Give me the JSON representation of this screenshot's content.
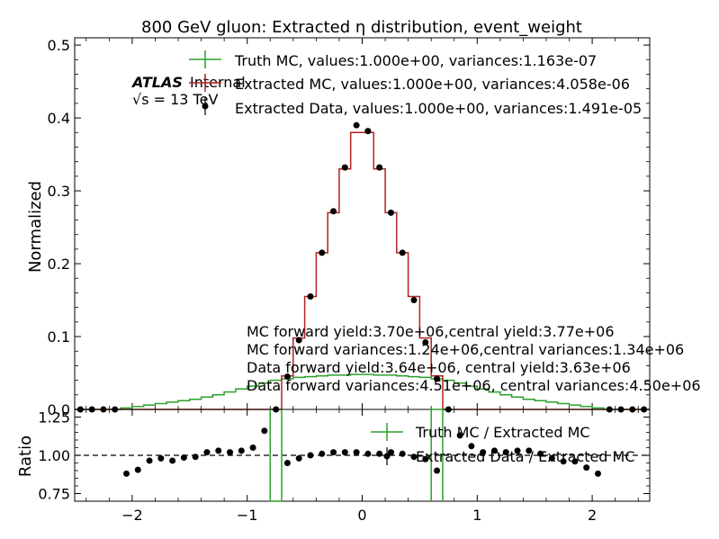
{
  "chart_data": [
    {
      "type": "step",
      "title": "800 GeV gluon: Extracted η distribution, event_weight",
      "xlabel": "",
      "ylabel": "Normalized",
      "xlim": [
        -2.5,
        2.5
      ],
      "ylim": [
        0,
        0.51
      ],
      "yticks": [
        "0.0",
        "0.1",
        "0.2",
        "0.3",
        "0.4",
        "0.5"
      ],
      "atlas_label": "ATLAS",
      "atlas_sub": "Internal",
      "energy_label": "√s = 13 TeV",
      "legend": [
        {
          "name": "Truth MC, values:1.000e+00, variances:1.163e-07",
          "color": "#2ca02c",
          "marker": "errorbar-line"
        },
        {
          "name": "Extracted MC, values:1.000e+00, variances:4.058e-06",
          "color": "#b22222",
          "marker": "errorbar-line"
        },
        {
          "name": "Extracted Data, values:1.000e+00, variances:1.491e-05",
          "color": "#000000",
          "marker": "dot"
        }
      ],
      "annotations": [
        "MC forward yield:3.70e+06,central yield:3.77e+06",
        "MC forward variances:1.24e+06,central variances:1.34e+06",
        "Data forward yield:3.64e+06, central yield:3.63e+06",
        "Data forward variances:4.51e+06, central variances:4.50e+06"
      ],
      "bin_edges": [
        -2.5,
        -2.4,
        -2.3,
        -2.2,
        -2.1,
        -2.0,
        -1.9,
        -1.8,
        -1.7,
        -1.6,
        -1.5,
        -1.4,
        -1.3,
        -1.2,
        -1.1,
        -1.0,
        -0.9,
        -0.8,
        -0.7,
        -0.6,
        -0.5,
        -0.4,
        -0.3,
        -0.2,
        -0.1,
        0.0,
        0.1,
        0.2,
        0.3,
        0.4,
        0.5,
        0.6,
        0.7,
        0.8,
        0.9,
        1.0,
        1.1,
        1.2,
        1.3,
        1.4,
        1.5,
        1.6,
        1.7,
        1.8,
        1.9,
        2.0,
        2.1,
        2.2,
        2.3,
        2.4,
        2.5
      ],
      "series": [
        {
          "name": "Truth MC",
          "color": "#2ca02c",
          "values": [
            0.0,
            0.0,
            0.0,
            0.0,
            0.002,
            0.004,
            0.006,
            0.008,
            0.01,
            0.012,
            0.014,
            0.017,
            0.02,
            0.024,
            0.028,
            0.032,
            0.036,
            0.04,
            0.042,
            0.044,
            0.045,
            0.046,
            0.047,
            0.047,
            0.048,
            0.048,
            0.047,
            0.047,
            0.046,
            0.045,
            0.044,
            0.042,
            0.04,
            0.036,
            0.032,
            0.028,
            0.024,
            0.02,
            0.017,
            0.014,
            0.012,
            0.01,
            0.008,
            0.006,
            0.004,
            0.002,
            0.0,
            0.0,
            0.0,
            0.0
          ]
        },
        {
          "name": "Extracted MC",
          "color": "#b22222",
          "values": [
            0.0,
            0.0,
            0.0,
            0.0,
            0.0,
            0.0,
            0.0,
            0.0,
            0.0,
            0.0,
            0.0,
            0.0,
            0.0,
            0.0,
            0.0,
            0.0,
            0.0,
            0.0,
            0.046,
            0.098,
            0.155,
            0.215,
            0.27,
            0.33,
            0.38,
            0.38,
            0.33,
            0.27,
            0.215,
            0.155,
            0.098,
            0.046,
            0.0,
            0.0,
            0.0,
            0.0,
            0.0,
            0.0,
            0.0,
            0.0,
            0.0,
            0.0,
            0.0,
            0.0,
            0.0,
            0.0,
            0.0,
            0.0,
            0.0,
            0.0
          ]
        },
        {
          "name": "Extracted Data",
          "color": "#000000",
          "points": [
            [
              -2.45,
              0.0
            ],
            [
              -2.35,
              0.0
            ],
            [
              -2.25,
              0.0
            ],
            [
              -2.15,
              0.0
            ],
            [
              -0.75,
              0.0
            ],
            [
              -0.65,
              0.045
            ],
            [
              -0.55,
              0.095
            ],
            [
              -0.45,
              0.155
            ],
            [
              -0.35,
              0.215
            ],
            [
              -0.25,
              0.272
            ],
            [
              -0.15,
              0.332
            ],
            [
              -0.05,
              0.39
            ],
            [
              0.05,
              0.382
            ],
            [
              0.15,
              0.332
            ],
            [
              0.25,
              0.27
            ],
            [
              0.35,
              0.215
            ],
            [
              0.45,
              0.15
            ],
            [
              0.55,
              0.092
            ],
            [
              0.65,
              0.042
            ],
            [
              0.75,
              0.0
            ],
            [
              2.15,
              0.0
            ],
            [
              2.25,
              0.0
            ],
            [
              2.35,
              0.0
            ],
            [
              2.45,
              0.0
            ]
          ]
        }
      ]
    },
    {
      "type": "step",
      "title": "",
      "xlabel": "",
      "ylabel": "Ratio",
      "xlim": [
        -2.5,
        2.5
      ],
      "ylim": [
        0.7,
        1.3
      ],
      "xticks": [
        "−2",
        "−1",
        "0",
        "1",
        "2"
      ],
      "yticks": [
        "0.75",
        "1.00",
        "1.25"
      ],
      "reference_line": 1.0,
      "legend": [
        {
          "name": "Truth MC / Extracted MC",
          "color": "#2ca02c",
          "marker": "errorbar-line"
        },
        {
          "name": "Extracted Data / Extracted MC",
          "color": "#000000",
          "marker": "dot"
        }
      ],
      "series": [
        {
          "name": "Truth MC / Extracted MC",
          "color": "#2ca02c",
          "segments": [
            {
              "x": [
                -0.8,
                -0.7
              ],
              "values": [
                1.3,
                0.7
              ]
            },
            {
              "x": [
                0.6,
                0.7
              ],
              "values": [
                0.7,
                1.3
              ]
            }
          ]
        },
        {
          "name": "Extracted Data / Extracted MC",
          "color": "#000000",
          "points": [
            [
              -2.05,
              0.88
            ],
            [
              -1.95,
              0.905
            ],
            [
              -1.85,
              0.965
            ],
            [
              -1.75,
              0.98
            ],
            [
              -1.65,
              0.965
            ],
            [
              -1.55,
              0.985
            ],
            [
              -1.45,
              0.99
            ],
            [
              -1.35,
              1.02
            ],
            [
              -1.25,
              1.03
            ],
            [
              -1.15,
              1.02
            ],
            [
              -1.05,
              1.03
            ],
            [
              -0.95,
              1.05
            ],
            [
              -0.85,
              1.16
            ],
            [
              -0.65,
              0.95
            ],
            [
              -0.55,
              0.98
            ],
            [
              -0.45,
              1.0
            ],
            [
              -0.35,
              1.01
            ],
            [
              -0.25,
              1.02
            ],
            [
              -0.15,
              1.02
            ],
            [
              -0.05,
              1.02
            ],
            [
              0.05,
              1.01
            ],
            [
              0.15,
              1.01
            ],
            [
              0.25,
              1.02
            ],
            [
              0.35,
              1.01
            ],
            [
              0.45,
              0.99
            ],
            [
              0.55,
              0.975
            ],
            [
              0.65,
              0.9
            ],
            [
              0.85,
              1.13
            ],
            [
              0.95,
              1.06
            ],
            [
              1.05,
              1.02
            ],
            [
              1.15,
              1.03
            ],
            [
              1.25,
              1.02
            ],
            [
              1.35,
              1.03
            ],
            [
              1.45,
              1.03
            ],
            [
              1.55,
              1.01
            ],
            [
              1.65,
              0.98
            ],
            [
              1.75,
              0.96
            ],
            [
              1.85,
              0.96
            ],
            [
              1.95,
              0.92
            ],
            [
              2.05,
              0.88
            ]
          ]
        }
      ]
    }
  ]
}
